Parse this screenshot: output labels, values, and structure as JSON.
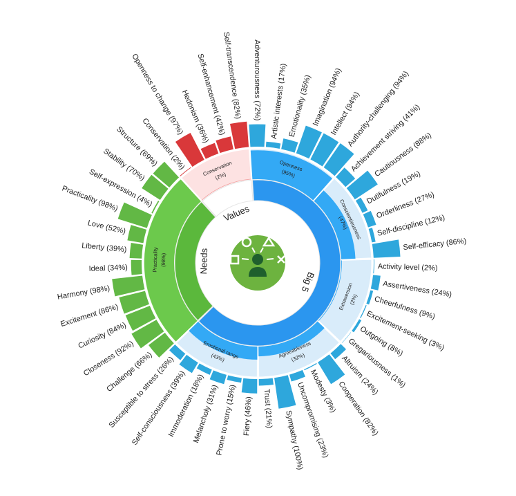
{
  "chart_data": {
    "type": "sunburst",
    "groups": [
      {
        "name": "Big 5",
        "ring_color": "#2b96ef",
        "dark_color": "#33a9f5",
        "light_color": "#d9ecfa",
        "facet_color": "#2ea7dc",
        "dimensions": [
          {
            "name": "Openness",
            "value": 95,
            "value_label": "(95%)",
            "facets": [
              {
                "label": "Adventurousness (72%)",
                "value": 72
              },
              {
                "label": "Artistic interests (17%)",
                "value": 17
              },
              {
                "label": "Emotionality (35%)",
                "value": 35
              },
              {
                "label": "Imagination (94%)",
                "value": 94
              },
              {
                "label": "Intellect (94%)",
                "value": 94
              },
              {
                "label": "Authority-challenging (94%)",
                "value": 94
              }
            ]
          },
          {
            "name": "Conscientiousness",
            "value": 47,
            "value_label": "(47%)",
            "facets": [
              {
                "label": "Achievement striving (41%)",
                "value": 41
              },
              {
                "label": "Cautiousness (88%)",
                "value": 88
              },
              {
                "label": "Dutifulness (19%)",
                "value": 19
              },
              {
                "label": "Orderliness (27%)",
                "value": 27
              },
              {
                "label": "Self-discipline (12%)",
                "value": 12
              },
              {
                "label": "Self-efficacy (86%)",
                "value": 86
              }
            ]
          },
          {
            "name": "Extraversion",
            "value": 2,
            "value_label": "(2%)",
            "facets": [
              {
                "label": "Activity level (2%)",
                "value": 2
              },
              {
                "label": "Assertiveness (24%)",
                "value": 24
              },
              {
                "label": "Cheerfulness (9%)",
                "value": 9
              },
              {
                "label": "Excitement-seeking (3%)",
                "value": 3
              },
              {
                "label": "Outgoing (8%)",
                "value": 8
              },
              {
                "label": "Gregariousness (1%)",
                "value": 1
              }
            ]
          },
          {
            "name": "Agreeableness",
            "value": 32,
            "value_label": "(32%)",
            "facets": [
              {
                "label": "Altruism (24%)",
                "value": 24
              },
              {
                "label": "Cooperation (82%)",
                "value": 82
              },
              {
                "label": "Modesty (3%)",
                "value": 3
              },
              {
                "label": "Uncompromising (23%)",
                "value": 23
              },
              {
                "label": "Sympathy (100%)",
                "value": 100
              },
              {
                "label": "Trust (21%)",
                "value": 21
              }
            ]
          },
          {
            "name": "Emotional range",
            "value": 43,
            "value_label": "(43%)",
            "facets": [
              {
                "label": "Fiery (46%)",
                "value": 46
              },
              {
                "label": "Prone to worry (15%)",
                "value": 15
              },
              {
                "label": "Melancholy (31%)",
                "value": 31
              },
              {
                "label": "Immoderation (18%)",
                "value": 18
              },
              {
                "label": "Self-consciousness (39%)",
                "value": 39
              },
              {
                "label": "Susceptible to stress (26%)",
                "value": 26
              }
            ]
          }
        ]
      },
      {
        "name": "Needs",
        "ring_color": "#5bb83c",
        "dark_color": "#6cc94c",
        "light_color": "#d8f0ca",
        "facet_color": "#62b845",
        "dimensions": [
          {
            "name": "Practicality",
            "value": 98,
            "value_label": "(98%)",
            "facets": [
              {
                "label": "Challenge (66%)",
                "value": 66
              },
              {
                "label": "Closeness (92%)",
                "value": 92
              },
              {
                "label": "Curiosity (84%)",
                "value": 84
              },
              {
                "label": "Excitement (86%)",
                "value": 86
              },
              {
                "label": "Harmony (98%)",
                "value": 98
              },
              {
                "label": "Ideal (34%)",
                "value": 34
              },
              {
                "label": "Liberty (39%)",
                "value": 39
              },
              {
                "label": "Love (52%)",
                "value": 52
              },
              {
                "label": "Practicality (98%)",
                "value": 98
              },
              {
                "label": "Self-expression (4%)",
                "value": 4
              },
              {
                "label": "Stability (70%)",
                "value": 70
              },
              {
                "label": "Structure (69%)",
                "value": 69
              }
            ]
          }
        ]
      },
      {
        "name": "Values",
        "ring_color": "#ffffff",
        "dark_color": "#f3a3a3",
        "light_color": "#fde2e2",
        "facet_color": "#d9383a",
        "dimensions": [
          {
            "name": "Conservation",
            "value": 2,
            "value_label": "(2%)",
            "facets": [
              {
                "label": "Conservation (2%)",
                "value": 2
              },
              {
                "label": "Openness to change (97%)",
                "value": 97
              },
              {
                "label": "Hedonism (36%)",
                "value": 36
              },
              {
                "label": "Self-enhancement (42%)",
                "value": 42
              },
              {
                "label": "Self-transcendence (82%)",
                "value": 82
              }
            ]
          }
        ]
      }
    ]
  }
}
